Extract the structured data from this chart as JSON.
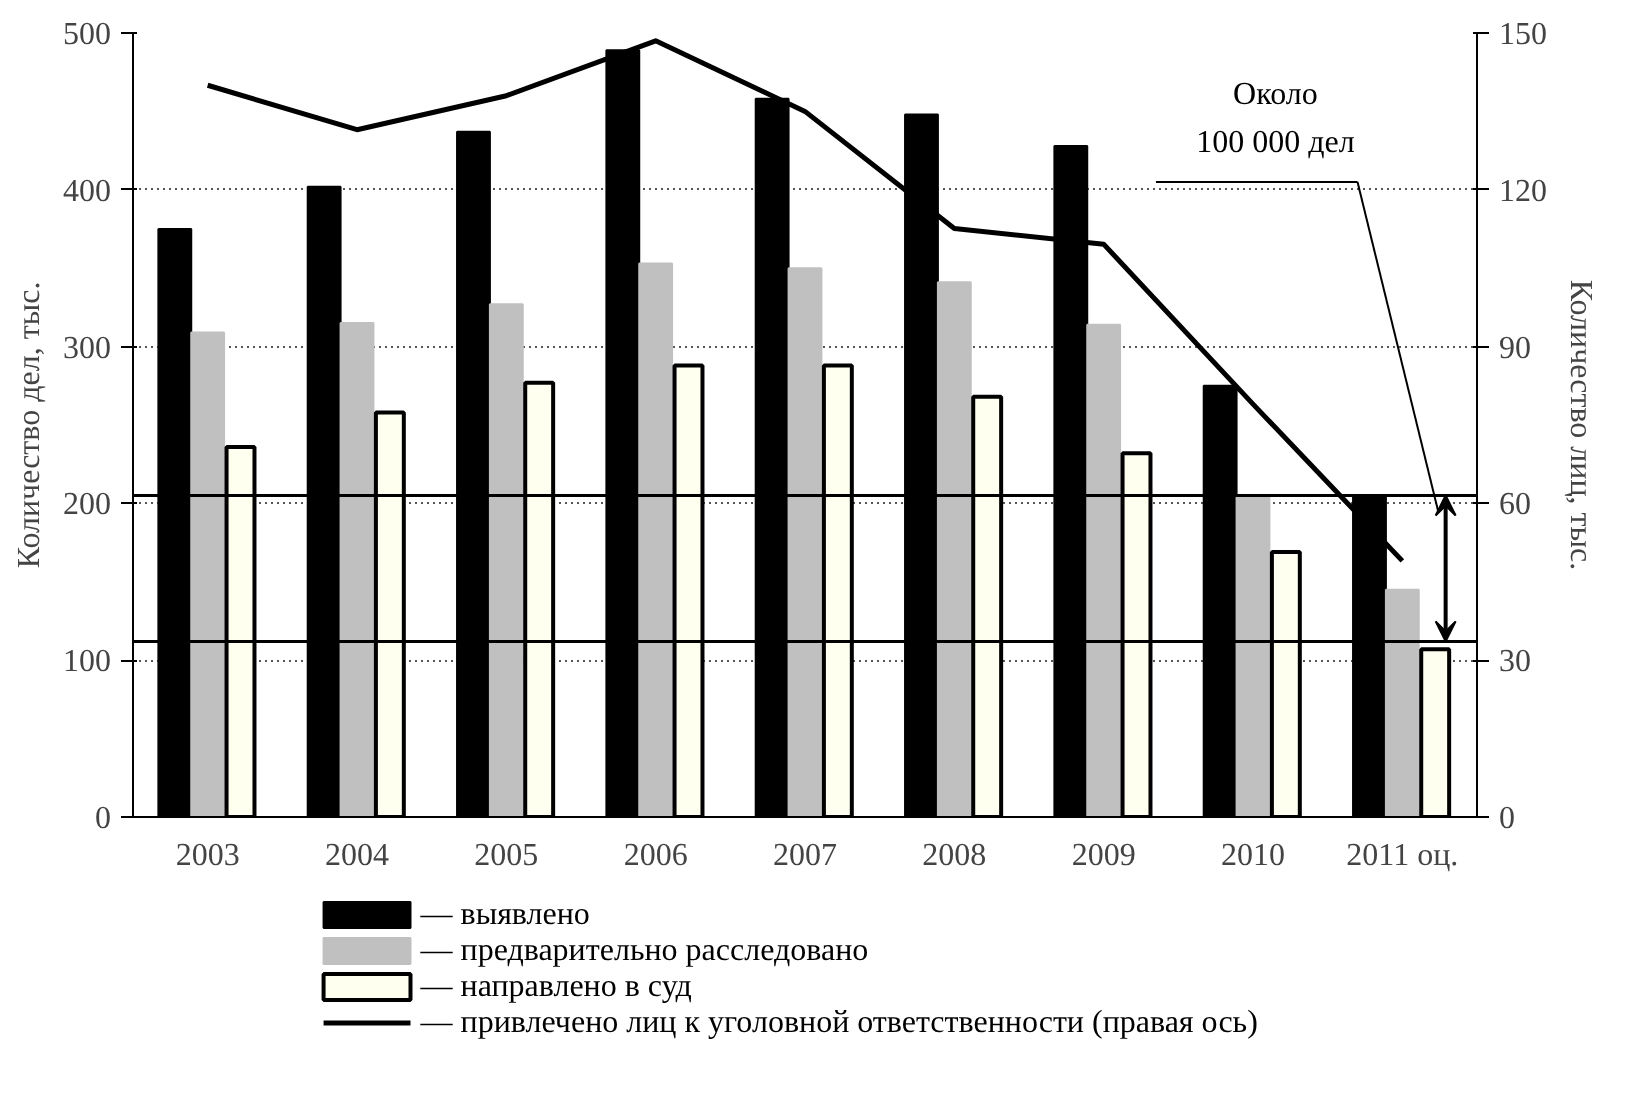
{
  "chart_data": {
    "type": "bar",
    "categories": [
      "2003",
      "2004",
      "2005",
      "2006",
      "2007",
      "2008",
      "2009",
      "2010",
      "2011 оц."
    ],
    "ylabel": "Количество дел, тыс.",
    "y2label": "Количество лиц, тыс.",
    "ylim": [
      0,
      500
    ],
    "yticks": [
      0,
      100,
      200,
      300,
      400,
      500
    ],
    "y2lim": [
      0,
      150
    ],
    "y2ticks": [
      0,
      30,
      60,
      90,
      120,
      150
    ],
    "series": [
      {
        "name": "— выявлено",
        "color": "#000000",
        "values": [
          375,
          402,
          437,
          489,
          458,
          448,
          428,
          275,
          204
        ]
      },
      {
        "name": "— предварительно расследовано",
        "color": "#c0c0c0",
        "values": [
          309,
          315,
          327,
          353,
          350,
          341,
          314,
          204,
          145
        ]
      },
      {
        "name": "— направлено в суд",
        "color": "#fffff0",
        "values": [
          236,
          258,
          277,
          288,
          288,
          268,
          232,
          169,
          107
        ]
      },
      {
        "name": "— привлечено лиц к уголовной ответственности (правая ось)",
        "type": "line",
        "axis": "y2",
        "color": "#000000",
        "values": [
          140,
          131.5,
          138,
          148.5,
          135,
          112.6,
          109.6,
          79,
          49
        ]
      }
    ],
    "ref_lines": [
      {
        "axis": "y",
        "value": 205,
        "color": "#000000"
      },
      {
        "axis": "y",
        "value": 112,
        "color": "#000000"
      }
    ],
    "annotations": [
      "Около\n100 000 дел"
    ],
    "grid": "y",
    "legend": "bottom"
  }
}
